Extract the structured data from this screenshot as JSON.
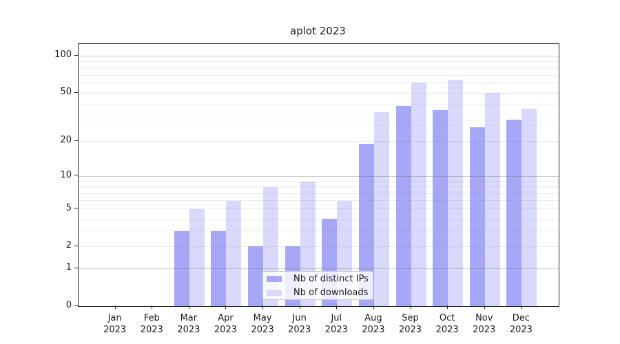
{
  "chart_data": {
    "type": "bar",
    "title": "aplot 2023",
    "categories": [
      "Jan 2023",
      "Feb 2023",
      "Mar 2023",
      "Apr 2023",
      "May 2023",
      "Jun 2023",
      "Jul 2023",
      "Aug 2023",
      "Sep 2023",
      "Oct 2023",
      "Nov 2023",
      "Dec 2023"
    ],
    "series": [
      {
        "name": "Nb of distinct IPs",
        "color": "#a7a7f7",
        "values": [
          0,
          0,
          3,
          3,
          2,
          2,
          4,
          19,
          39,
          36,
          26,
          30
        ]
      },
      {
        "name": "Nb of downloads",
        "color": "#d8d9fb",
        "values": [
          0,
          0,
          5,
          6,
          8,
          9,
          6,
          35,
          61,
          64,
          50,
          37
        ]
      }
    ],
    "xlabel": "",
    "ylabel": "",
    "yscale": "log1p",
    "ylim": [
      0,
      123
    ],
    "y_ticks": [
      0,
      1,
      2,
      5,
      10,
      20,
      50,
      100
    ],
    "y_major_gridlines": [
      1,
      10,
      100
    ],
    "y_minor_gridlines": [
      2,
      3,
      4,
      5,
      6,
      7,
      8,
      9,
      20,
      30,
      40,
      50,
      60,
      70,
      80,
      90
    ],
    "grid": true,
    "legend_position": "lower center",
    "colors": {
      "axis": "#262626",
      "text": "#1a1a1a",
      "background": "#ffffff"
    }
  }
}
